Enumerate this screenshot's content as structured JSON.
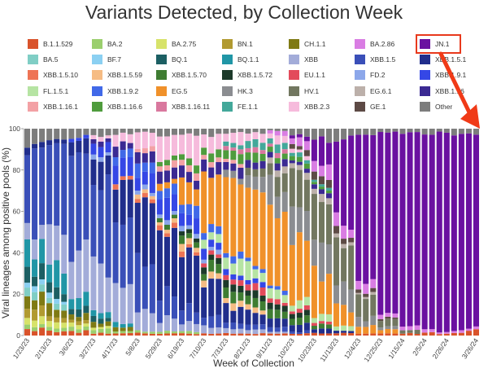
{
  "chart_data": {
    "type": "bar",
    "stacked": true,
    "title": "Variants Detected, by Collection Week",
    "xlabel": "Week of Collection",
    "ylabel": "Viral lineages among positive pools (%)",
    "ylim": [
      0,
      100
    ],
    "yticks": [
      0,
      20,
      40,
      60,
      80,
      100
    ],
    "xticks": [
      "1/23/23",
      "2/13/23",
      "3/6/23",
      "3/27/23",
      "4/17/23",
      "5/8/23",
      "5/29/23",
      "6/19/23",
      "7/10/23",
      "7/31/23",
      "8/21/23",
      "9/11/23",
      "10/2/23",
      "10/23/23",
      "11/13/23",
      "12/4/23",
      "12/25/23",
      "1/15/24",
      "2/5/24",
      "2/26/24",
      "3/26/24"
    ],
    "legend": [
      {
        "name": "B.1.1.529",
        "color": "#d9532b"
      },
      {
        "name": "BA.2",
        "color": "#9bcf6e"
      },
      {
        "name": "BA.2.75",
        "color": "#d7e36a"
      },
      {
        "name": "BN.1",
        "color": "#b19a31"
      },
      {
        "name": "CH.1.1",
        "color": "#7f7a14"
      },
      {
        "name": "BA.2.86",
        "color": "#d97de3"
      },
      {
        "name": "JN.1",
        "color": "#6a11a0"
      },
      {
        "name": "BA.5",
        "color": "#80cec5"
      },
      {
        "name": "BF.7",
        "color": "#8bd0f2"
      },
      {
        "name": "BQ.1",
        "color": "#1c5f63"
      },
      {
        "name": "BQ.1.1",
        "color": "#2096a6"
      },
      {
        "name": "XBB",
        "color": "#a3acd9"
      },
      {
        "name": "XBB.1.5",
        "color": "#3a4fb8"
      },
      {
        "name": "XBB.1.5.1",
        "color": "#212e8c"
      },
      {
        "name": "XBB.1.5.10",
        "color": "#ee7455"
      },
      {
        "name": "XBB.1.5.59",
        "color": "#f6bc84"
      },
      {
        "name": "XBB.1.5.70",
        "color": "#3f7d32"
      },
      {
        "name": "XBB.1.5.72",
        "color": "#1c3a2a"
      },
      {
        "name": "EU.1.1",
        "color": "#e34b5b"
      },
      {
        "name": "FD.2",
        "color": "#8ca7ea"
      },
      {
        "name": "XBB.1.9.1",
        "color": "#3547e6"
      },
      {
        "name": "FL.1.5.1",
        "color": "#b6e4a3"
      },
      {
        "name": "XBB.1.9.2",
        "color": "#4169e8"
      },
      {
        "name": "EG.5",
        "color": "#f0912a"
      },
      {
        "name": "HK.3",
        "color": "#8b8d91"
      },
      {
        "name": "HV.1",
        "color": "#727760"
      },
      {
        "name": "EG.6.1",
        "color": "#bcb0aa"
      },
      {
        "name": "XBB.1.16",
        "color": "#3b2a93"
      },
      {
        "name": "XBB.1.16.1",
        "color": "#f3a1a5"
      },
      {
        "name": "XBB.1.16.6",
        "color": "#4f9c3d"
      },
      {
        "name": "XBB.1.16.11",
        "color": "#d9789e"
      },
      {
        "name": "FE.1.1",
        "color": "#43a89a"
      },
      {
        "name": "XBB.2.3",
        "color": "#f6bbdc"
      },
      {
        "name": "GE.1",
        "color": "#5d4a45"
      },
      {
        "name": "Other",
        "color": "#7d7d7d"
      }
    ],
    "legend_placement": "top",
    "highlight": {
      "legend_item": "JN.1",
      "box_color": "#e8391d",
      "arrow_color": "#f03a17"
    },
    "stack_order": [
      "B.1.1.529",
      "BA.2",
      "BA.2.75",
      "BN.1",
      "CH.1.1",
      "BA.5",
      "BF.7",
      "BQ.1",
      "BQ.1.1",
      "XBB",
      "XBB.1.5",
      "XBB.1.5.1",
      "XBB.1.5.10",
      "XBB.1.5.59",
      "XBB.1.5.70",
      "XBB.1.5.72",
      "EU.1.1",
      "FD.2",
      "XBB.1.9.1",
      "FL.1.5.1",
      "XBB.1.9.2",
      "EG.5",
      "HK.3",
      "HV.1",
      "EG.6.1",
      "XBB.1.16",
      "XBB.1.16.1",
      "XBB.1.16.6",
      "XBB.1.16.11",
      "FE.1.1",
      "XBB.2.3",
      "GE.1",
      "BA.2.86",
      "JN.1",
      "Other"
    ],
    "periods": [
      {
        "from": "1/23/23",
        "weeks": 3,
        "shares": {
          "B.1.1.529": 3,
          "BA.2": 2,
          "BA.2.75": 4,
          "BN.1": 5,
          "CH.1.1": 6,
          "BA.5": 4,
          "BF.7": 3,
          "BQ.1": 6,
          "BQ.1.1": 12,
          "XBB": 8,
          "XBB.1.5": 36,
          "XBB.1.5.1": 3,
          "Other": 8
        }
      },
      {
        "from": "2/13/23",
        "weeks": 3,
        "shares": {
          "B.1.1.529": 2,
          "BA.2": 2,
          "BA.2.75": 3,
          "BN.1": 3,
          "CH.1.1": 5,
          "BA.5": 3,
          "BF.7": 2,
          "BQ.1": 5,
          "BQ.1.1": 10,
          "XBB": 18,
          "XBB.1.5": 40,
          "XBB.1.5.1": 2,
          "Other": 5
        }
      },
      {
        "from": "3/6/23",
        "weeks": 3,
        "shares": {
          "B.1.1.529": 2,
          "BA.2": 2,
          "BA.2.75": 2,
          "BN.1": 2,
          "CH.1.1": 3,
          "BQ.1": 3,
          "BQ.1.1": 6,
          "XBB": 20,
          "XBB.1.5": 48,
          "XBB.1.5.1": 6,
          "XBB.1.9.1": 2,
          "Other": 4
        }
      },
      {
        "from": "3/27/23",
        "weeks": 3,
        "shares": {
          "B.1.1.529": 1,
          "BA.2": 2,
          "BA.2.75": 1,
          "CH.1.1": 2,
          "BQ.1": 2,
          "BQ.1.1": 3,
          "XBB": 22,
          "XBB.1.5": 40,
          "XBB.1.5.1": 12,
          "FD.2": 2,
          "XBB.1.9.1": 6,
          "XBB.1.16": 2,
          "XBB.2.3": 2,
          "Other": 3
        }
      },
      {
        "from": "4/17/23",
        "weeks": 3,
        "shares": {
          "B.1.1.529": 1,
          "BA.2": 1,
          "CH.1.1": 2,
          "BQ.1.1": 2,
          "XBB": 18,
          "XBB.1.5": 30,
          "XBB.1.5.1": 20,
          "XBB.1.5.10": 2,
          "XBB.1.9.1": 8,
          "XBB.1.9.2": 4,
          "XBB.1.16": 4,
          "XBB.2.3": 5,
          "Other": 3
        }
      },
      {
        "from": "5/8/23",
        "weeks": 3,
        "shares": {
          "B.1.1.529": 1,
          "BA.2": 1,
          "XBB": 10,
          "XBB.1.5": 24,
          "XBB.1.5.1": 28,
          "XBB.1.5.10": 2,
          "XBB.1.5.59": 2,
          "FD.2": 2,
          "XBB.1.9.1": 8,
          "XBB.1.9.2": 5,
          "XBB.1.16": 5,
          "XBB.1.16.1": 2,
          "XBB.2.3": 8,
          "Other": 2
        }
      },
      {
        "from": "5/29/23",
        "weeks": 3,
        "shares": {
          "B.1.1.529": 1,
          "BA.2": 1,
          "XBB": 6,
          "XBB.1.5": 14,
          "XBB.1.5.1": 30,
          "XBB.1.5.10": 2,
          "XBB.1.5.59": 2,
          "XBB.1.5.70": 2,
          "FD.2": 2,
          "XBB.1.9.1": 8,
          "XBB.1.9.2": 5,
          "EG.5": 3,
          "XBB.1.16": 6,
          "XBB.1.16.1": 3,
          "XBB.1.16.6": 2,
          "XBB.2.3": 10,
          "Other": 3
        }
      },
      {
        "from": "6/19/23",
        "weeks": 3,
        "shares": {
          "B.1.1.529": 1,
          "BA.2": 1,
          "XBB": 4,
          "XBB.1.5": 8,
          "XBB.1.5.1": 26,
          "XBB.1.5.10": 2,
          "XBB.1.5.59": 3,
          "XBB.1.5.70": 3,
          "XBB.1.5.72": 2,
          "FD.2": 2,
          "XBB.1.9.1": 6,
          "XBB.1.9.2": 5,
          "EG.5": 10,
          "XBB.1.16": 6,
          "XBB.1.16.1": 3,
          "XBB.1.16.6": 3,
          "XBB.2.3": 12,
          "Other": 3
        }
      },
      {
        "from": "7/10/23",
        "weeks": 3,
        "shares": {
          "B.1.1.529": 1,
          "XBB": 3,
          "XBB.1.5": 5,
          "XBB.1.5.1": 16,
          "XBB.1.5.59": 3,
          "XBB.1.5.70": 4,
          "XBB.1.5.72": 3,
          "EU.1.1": 2,
          "FD.2": 2,
          "XBB.1.9.1": 4,
          "FL.1.5.1": 4,
          "XBB.1.9.2": 4,
          "EG.5": 26,
          "XBB.1.16": 5,
          "XBB.1.16.1": 3,
          "XBB.1.16.6": 4,
          "XBB.2.3": 8,
          "Other": 3
        }
      },
      {
        "from": "7/31/23",
        "weeks": 3,
        "shares": {
          "B.1.1.529": 1,
          "XBB": 2,
          "XBB.1.5": 3,
          "XBB.1.5.1": 8,
          "XBB.1.5.59": 3,
          "XBB.1.5.70": 5,
          "XBB.1.5.72": 3,
          "EU.1.1": 3,
          "XBB.1.9.1": 3,
          "FL.1.5.1": 6,
          "XBB.1.9.2": 3,
          "EG.5": 36,
          "HK.3": 3,
          "XBB.1.16": 4,
          "XBB.1.16.1": 2,
          "XBB.1.16.6": 4,
          "XBB.1.16.11": 2,
          "FE.1.1": 2,
          "XBB.2.3": 5,
          "Other": 2
        }
      },
      {
        "from": "8/21/23",
        "weeks": 3,
        "shares": {
          "B.1.1.529": 1,
          "XBB": 2,
          "XBB.1.5": 2,
          "XBB.1.5.1": 5,
          "XBB.1.5.59": 2,
          "XBB.1.5.70": 5,
          "XBB.1.5.72": 3,
          "EU.1.1": 3,
          "XBB.1.9.1": 2,
          "FL.1.5.1": 6,
          "XBB.1.9.2": 2,
          "EG.5": 40,
          "HK.3": 6,
          "HV.1": 3,
          "XBB.1.16": 3,
          "XBB.1.16.6": 4,
          "XBB.1.16.11": 2,
          "FE.1.1": 3,
          "XBB.2.3": 4,
          "Other": 2
        }
      },
      {
        "from": "9/11/23",
        "weeks": 3,
        "shares": {
          "B.1.1.529": 1,
          "XBB": 1,
          "XBB.1.5": 2,
          "XBB.1.5.1": 4,
          "XBB.1.5.70": 4,
          "XBB.1.5.72": 3,
          "EU.1.1": 2,
          "FL.1.5.1": 5,
          "XBB.1.9.2": 2,
          "EG.5": 36,
          "HK.3": 12,
          "HV.1": 8,
          "EG.6.1": 3,
          "XBB.1.16": 3,
          "XBB.1.16.6": 3,
          "XBB.1.16.11": 2,
          "FE.1.1": 3,
          "XBB.2.3": 3,
          "BA.2.86": 2,
          "Other": 1
        }
      },
      {
        "from": "10/2/23",
        "weeks": 3,
        "shares": {
          "B.1.1.529": 1,
          "XBB.1.5": 1,
          "XBB.1.5.1": 3,
          "XBB.1.5.70": 3,
          "XBB.1.5.72": 2,
          "EU.1.1": 2,
          "FL.1.5.1": 4,
          "EG.5": 30,
          "HK.3": 16,
          "HV.1": 16,
          "EG.6.1": 3,
          "XBB.1.16": 2,
          "XBB.1.16.6": 2,
          "FE.1.1": 2,
          "XBB.2.3": 2,
          "GE.1": 2,
          "BA.2.86": 4,
          "JN.1": 2,
          "Other": 3
        }
      },
      {
        "from": "10/23/23",
        "weeks": 3,
        "shares": {
          "B.1.1.529": 1,
          "XBB.1.5.1": 2,
          "XBB.1.5.70": 2,
          "EU.1.1": 1,
          "FL.1.5.1": 3,
          "EG.5": 20,
          "HK.3": 16,
          "HV.1": 22,
          "EG.6.1": 3,
          "XBB.1.16": 2,
          "XBB.1.16.6": 1,
          "FE.1.1": 1,
          "GE.1": 3,
          "BA.2.86": 6,
          "JN.1": 12,
          "Other": 5
        }
      },
      {
        "from": "11/13/23",
        "weeks": 3,
        "shares": {
          "B.1.1.529": 1,
          "XBB.1.5.1": 1,
          "FL.1.5.1": 2,
          "EG.5": 10,
          "HK.3": 10,
          "HV.1": 18,
          "EG.6.1": 2,
          "GE.1": 3,
          "BA.2.86": 6,
          "JN.1": 42,
          "Other": 5
        }
      },
      {
        "from": "12/4/23",
        "weeks": 3,
        "shares": {
          "B.1.1.529": 1,
          "EG.5": 4,
          "HK.3": 4,
          "HV.1": 10,
          "EG.6.1": 1,
          "GE.1": 2,
          "BA.2.86": 5,
          "JN.1": 70,
          "Other": 3
        }
      },
      {
        "from": "12/25/23",
        "weeks": 3,
        "shares": {
          "B.1.1.529": 1,
          "EG.5": 2,
          "HK.3": 2,
          "HV.1": 4,
          "GE.1": 1,
          "BA.2.86": 3,
          "JN.1": 85,
          "Other": 2
        }
      },
      {
        "from": "1/15/24",
        "weeks": 3,
        "shares": {
          "B.1.1.529": 1,
          "HV.1": 2,
          "BA.2.86": 2,
          "JN.1": 93,
          "Other": 2
        }
      },
      {
        "from": "2/5/24",
        "weeks": 3,
        "shares": {
          "B.1.1.529": 1,
          "BA.2.86": 1,
          "JN.1": 96,
          "Other": 2
        }
      },
      {
        "from": "2/26/24",
        "weeks": 3,
        "shares": {
          "B.1.1.529": 1,
          "BA.2.86": 1,
          "JN.1": 96,
          "Other": 2
        }
      },
      {
        "from": "3/18/24",
        "weeks": 2,
        "shares": {
          "B.1.1.529": 2,
          "BA.2.86": 1,
          "JN.1": 95,
          "Other": 2
        }
      }
    ]
  }
}
